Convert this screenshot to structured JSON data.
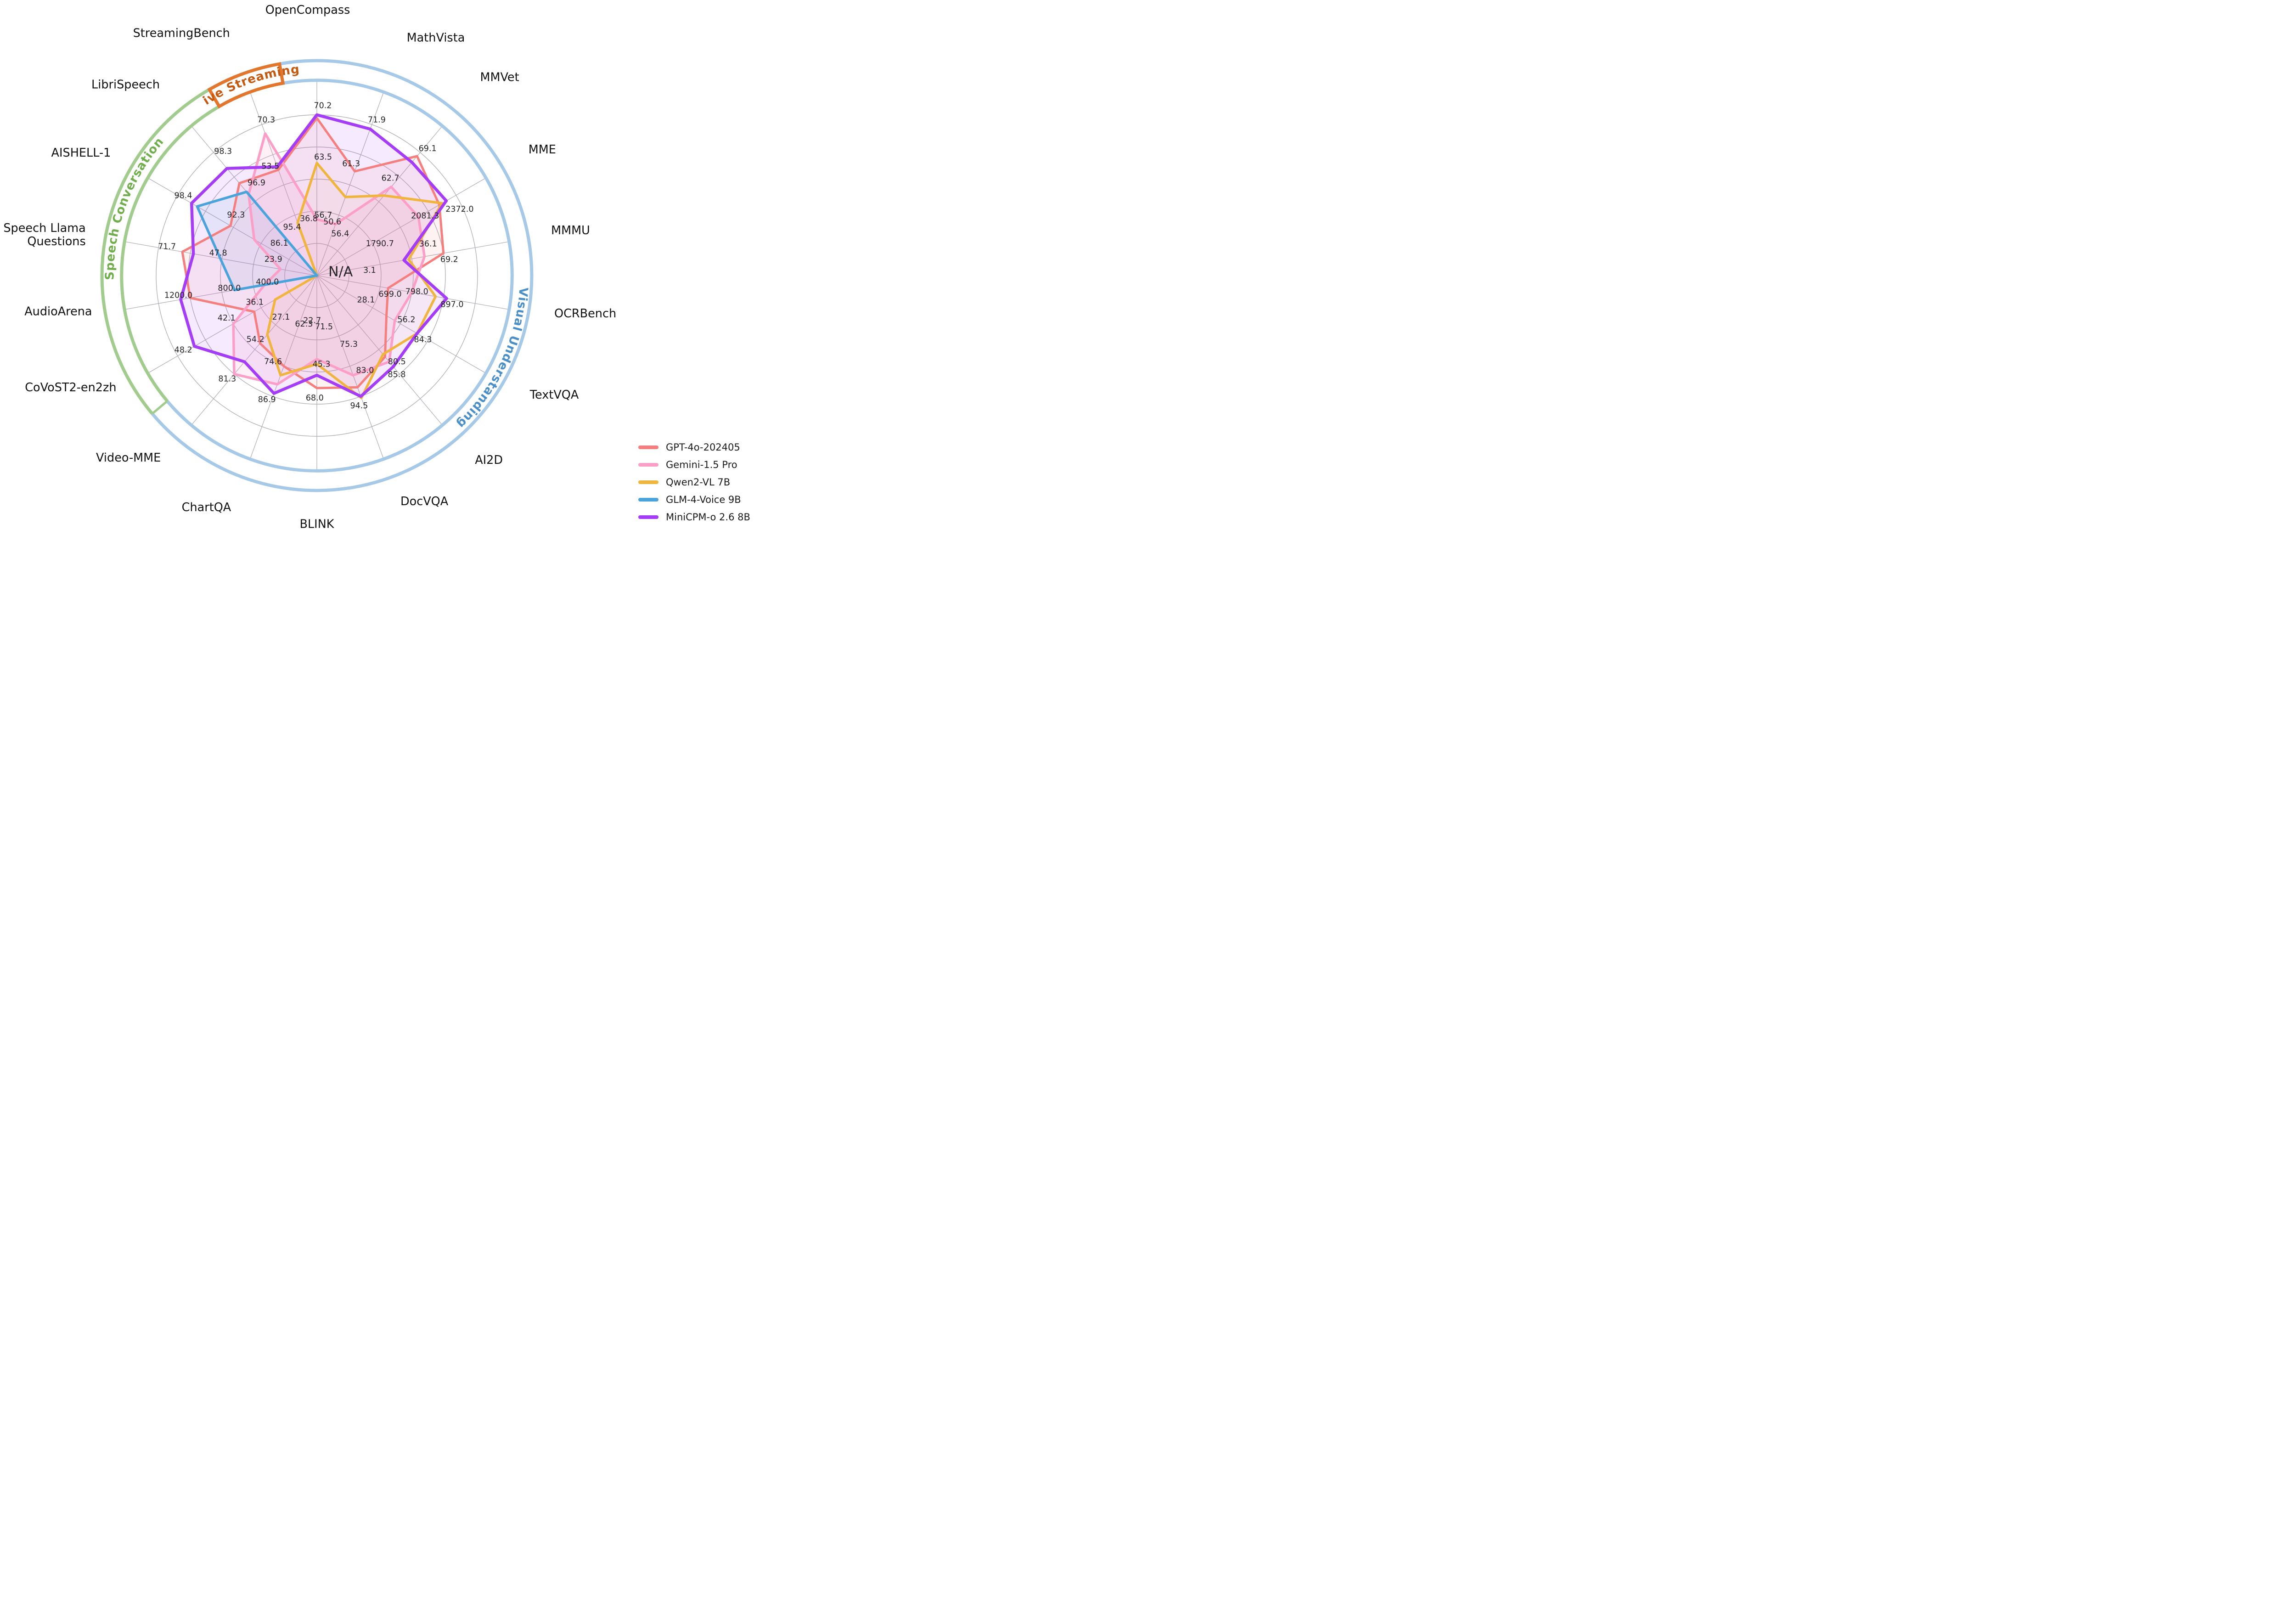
{
  "chart_data": {
    "type": "radar",
    "center_label": "N/A",
    "rings": [
      0.2,
      0.4,
      0.6,
      0.8,
      1.0
    ],
    "grid_color": "#b3b0b8",
    "band_inner_r": 1.215,
    "band_outer_r": 1.337,
    "groups": [
      {
        "id": "visual",
        "label": "Visual Understanding",
        "color": "#a6c9e8",
        "text_color": "#4a8fc7",
        "start_deg": -10,
        "end_deg": 230,
        "style": "arcs",
        "text_arc": [
          80,
          150
        ]
      },
      {
        "id": "speech",
        "label": "Speech Conversation",
        "color": "#a2cc8e",
        "text_color": "#6fae4b",
        "start_deg": 230,
        "end_deg": 330,
        "style": "arcs-capped",
        "text_arc": [
          252,
          328
        ]
      },
      {
        "id": "live",
        "label": "Live Streaming",
        "color": "#e2762d",
        "text_color": "#c45911",
        "start_deg": 330,
        "end_deg": 350,
        "style": "box",
        "text_arc": [
          326,
          354
        ]
      }
    ],
    "axes": [
      {
        "name": "OpenCompass",
        "deg": 0,
        "group": "visual",
        "label_deg": 358,
        "label_r": 1.63
      },
      {
        "name": "MathVista",
        "deg": 20,
        "group": "visual",
        "label_deg": 21,
        "label_r": 1.56
      },
      {
        "name": "MMVet",
        "deg": 40,
        "group": "visual",
        "label_deg": 40,
        "label_r": 1.58
      },
      {
        "name": "MME",
        "deg": 60,
        "group": "visual",
        "label_deg": 60,
        "label_r": 1.52
      },
      {
        "name": "MMMU",
        "deg": 80,
        "group": "visual",
        "label_deg": 80,
        "label_r": 1.48
      },
      {
        "name": "OCRBench",
        "deg": 100,
        "group": "visual",
        "label_deg": 100,
        "label_r": 1.5
      },
      {
        "name": "TextVQA",
        "deg": 120,
        "group": "visual",
        "label_deg": 120,
        "label_r": 1.53
      },
      {
        "name": "AI2D",
        "deg": 140,
        "group": "visual",
        "label_deg": 140,
        "label_r": 1.53
      },
      {
        "name": "DocVQA",
        "deg": 160,
        "group": "visual",
        "label_deg": 160,
        "label_r": 1.52
      },
      {
        "name": "BLINK",
        "deg": 180,
        "group": "visual",
        "label_deg": 180,
        "label_r": 1.57
      },
      {
        "name": "ChartQA",
        "deg": 200,
        "group": "visual",
        "label_deg": 200,
        "label_r": 1.56
      },
      {
        "name": "Video-MME",
        "deg": 220,
        "group": "visual",
        "label_deg": 220,
        "label_r": 1.51
      },
      {
        "name": "CoVoST2-en2zh",
        "deg": 240,
        "group": "speech",
        "label_deg": 240,
        "label_r": 1.44
      },
      {
        "name": "AudioArena",
        "deg": 260,
        "group": "speech",
        "label_deg": 260,
        "label_r": 1.42
      },
      {
        "name": "Speech Llama Questions",
        "lines": [
          "Speech Llama",
          "Questions"
        ],
        "deg": 280,
        "group": "speech",
        "label_deg": 280,
        "label_r": 1.46
      },
      {
        "name": "AISHELL-1",
        "deg": 300,
        "group": "speech",
        "label_deg": 300,
        "label_r": 1.48
      },
      {
        "name": "LibriSpeech",
        "deg": 320,
        "group": "speech",
        "label_deg": 320,
        "label_r": 1.52
      },
      {
        "name": "StreamingBench",
        "deg": 340,
        "group": "live",
        "label_deg": 340,
        "label_r": 1.58
      }
    ],
    "series": [
      {
        "name": "GPT-4o-202405",
        "color": "#f57f7f",
        "stroke_width": 5,
        "fill_opacity": 0.1,
        "r": [
          0.98,
          0.69,
          0.97,
          0.88,
          0.8,
          0.45,
          0.5,
          0.66,
          0.74,
          0.7,
          0.6,
          0.55,
          0.45,
          0.8,
          0.85,
          0.62,
          0.75,
          0.7
        ]
      },
      {
        "name": "Gemini-1.5 Pro",
        "color": "#fb9fc9",
        "stroke_width": 5.5,
        "fill_opacity": 0.16,
        "r": [
          0.35,
          0.34,
          0.72,
          0.73,
          0.68,
          0.6,
          0.56,
          0.7,
          0.66,
          0.52,
          0.72,
          0.8,
          0.6,
          0.33,
          0.23,
          0.45,
          0.66,
          0.94
        ]
      },
      {
        "name": "Qwen2-VL 7B",
        "color": "#f0b53f",
        "stroke_width": 5.5,
        "fill_opacity": 0.05,
        "r": [
          0.7,
          0.52,
          0.65,
          0.9,
          0.58,
          0.75,
          0.72,
          0.64,
          0.81,
          0.55,
          0.66,
          0.48,
          0.3,
          0.0,
          0.0,
          0.0,
          0.0,
          0.35
        ]
      },
      {
        "name": "GLM-4-Voice 9B",
        "color": "#4ba3dc",
        "stroke_width": 5.5,
        "fill_opacity": 0.1,
        "r": [
          0.0,
          0.0,
          0.0,
          0.0,
          0.0,
          0.0,
          0.0,
          0.0,
          0.0,
          0.0,
          0.0,
          0.0,
          0.0,
          0.52,
          0.61,
          0.86,
          0.68,
          0.0
        ]
      },
      {
        "name": "MiniCPM-o 2.6 8B",
        "color": "#a43df5",
        "stroke_width": 6.5,
        "fill_opacity": 0.1,
        "r": [
          1.0,
          0.97,
          0.92,
          0.93,
          0.55,
          0.82,
          0.72,
          0.74,
          0.8,
          0.62,
          0.78,
          0.7,
          0.88,
          0.86,
          0.78,
          0.9,
          0.87,
          0.72
        ]
      }
    ],
    "value_labels": [
      {
        "text": "70.2",
        "deg": 2,
        "r": 1.06
      },
      {
        "text": "63.5",
        "deg": 3,
        "r": 0.74
      },
      {
        "text": "56.7",
        "deg": 6,
        "r": 0.38
      },
      {
        "text": "71.9",
        "deg": 21,
        "r": 1.04
      },
      {
        "text": "61.3",
        "deg": 17,
        "r": 0.73
      },
      {
        "text": "50.6",
        "deg": 16,
        "r": 0.35
      },
      {
        "text": "56.4",
        "deg": 29,
        "r": 0.3
      },
      {
        "text": "69.1",
        "deg": 41,
        "r": 1.05
      },
      {
        "text": "62.7",
        "deg": 37,
        "r": 0.76
      },
      {
        "text": "2372.0",
        "deg": 65,
        "r": 0.98
      },
      {
        "text": "2081.3",
        "deg": 61,
        "r": 0.77
      },
      {
        "text": "1790.7",
        "deg": 63,
        "r": 0.44
      },
      {
        "text": "69.2",
        "deg": 83,
        "r": 0.83
      },
      {
        "text": "36.1",
        "deg": 74,
        "r": 0.72
      },
      {
        "text": "3.1",
        "deg": 84,
        "r": 0.33
      },
      {
        "text": "897.0",
        "deg": 102,
        "r": 0.86
      },
      {
        "text": "798.0",
        "deg": 99,
        "r": 0.63
      },
      {
        "text": "699.0",
        "deg": 104,
        "r": 0.47
      },
      {
        "text": "84.3",
        "deg": 121,
        "r": 0.77
      },
      {
        "text": "56.2",
        "deg": 116,
        "r": 0.62
      },
      {
        "text": "28.1",
        "deg": 116,
        "r": 0.34
      },
      {
        "text": "85.8",
        "deg": 141,
        "r": 0.79
      },
      {
        "text": "80.5",
        "deg": 137,
        "r": 0.73
      },
      {
        "text": "75.3",
        "deg": 155,
        "r": 0.47
      },
      {
        "text": "94.5",
        "deg": 162,
        "r": 0.85
      },
      {
        "text": "83.0",
        "deg": 153,
        "r": 0.66
      },
      {
        "text": "71.5",
        "deg": 172,
        "r": 0.32
      },
      {
        "text": "68.0",
        "deg": 181,
        "r": 0.76
      },
      {
        "text": "45.3",
        "deg": 177,
        "r": 0.55
      },
      {
        "text": "22.7",
        "deg": 186,
        "r": 0.28
      },
      {
        "text": "62.3",
        "deg": 195,
        "r": 0.31
      },
      {
        "text": "86.9",
        "deg": 202,
        "r": 0.83
      },
      {
        "text": "74.6",
        "deg": 207,
        "r": 0.6
      },
      {
        "text": "81.3",
        "deg": 221,
        "r": 0.85
      },
      {
        "text": "54.2",
        "deg": 224,
        "r": 0.55
      },
      {
        "text": "27.1",
        "deg": 221,
        "r": 0.34
      },
      {
        "text": "48.2",
        "deg": 241,
        "r": 0.95
      },
      {
        "text": "42.1",
        "deg": 245,
        "r": 0.62
      },
      {
        "text": "36.1",
        "deg": 247,
        "r": 0.42
      },
      {
        "text": "1200.0",
        "deg": 262,
        "r": 0.87
      },
      {
        "text": "800.0",
        "deg": 262,
        "r": 0.55
      },
      {
        "text": "400.0",
        "deg": 263,
        "r": 0.31
      },
      {
        "text": "71.7",
        "deg": 281,
        "r": 0.95
      },
      {
        "text": "47.8",
        "deg": 283,
        "r": 0.63
      },
      {
        "text": "23.9",
        "deg": 291,
        "r": 0.29
      },
      {
        "text": "98.4",
        "deg": 301,
        "r": 0.97
      },
      {
        "text": "92.3",
        "deg": 307,
        "r": 0.63
      },
      {
        "text": "86.1",
        "deg": 311,
        "r": 0.31
      },
      {
        "text": "98.3",
        "deg": 323,
        "r": 0.97
      },
      {
        "text": "96.9",
        "deg": 327,
        "r": 0.69
      },
      {
        "text": "95.4",
        "deg": 333,
        "r": 0.34
      },
      {
        "text": "70.3",
        "deg": 342,
        "r": 1.02
      },
      {
        "text": "53.5",
        "deg": 337,
        "r": 0.74
      },
      {
        "text": "36.8",
        "deg": 352,
        "r": 0.36
      }
    ]
  }
}
